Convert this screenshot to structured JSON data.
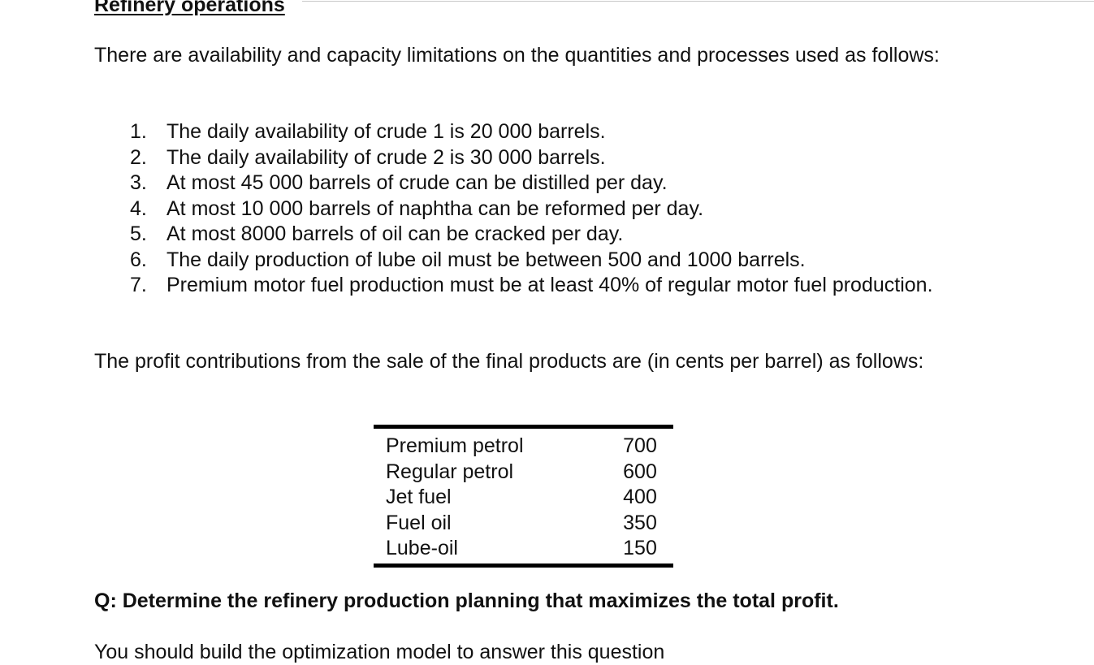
{
  "document": {
    "heading": "Refinery operations",
    "intro": "There are availability and capacity limitations on the quantities and processes used as follows:",
    "limitations": [
      {
        "number": "1.",
        "text": "The daily availability of crude 1 is 20 000 barrels."
      },
      {
        "number": "2.",
        "text": "The daily availability of crude 2 is 30 000 barrels."
      },
      {
        "number": "3.",
        "text": "At most 45 000 barrels of crude can be distilled per day."
      },
      {
        "number": "4.",
        "text": "At most 10 000 barrels of naphtha can be reformed per day."
      },
      {
        "number": "5.",
        "text": "At most 8000 barrels of oil can be cracked per day."
      },
      {
        "number": "6.",
        "text": "The daily production of lube oil must be between 500 and 1000 barrels."
      },
      {
        "number": "7.",
        "text": "Premium motor fuel production must be at least 40% of regular motor fuel production."
      }
    ],
    "profit_intro": "The profit contributions from the sale of the final products are (in cents per barrel) as follows:",
    "profit_table": [
      {
        "product": "Premium petrol",
        "value": "700"
      },
      {
        "product": "Regular petrol",
        "value": "600"
      },
      {
        "product": "Jet fuel",
        "value": "400"
      },
      {
        "product": "Fuel oil",
        "value": "350"
      },
      {
        "product": "Lube-oil",
        "value": "150"
      }
    ],
    "question": "Q: Determine the refinery production planning that maximizes the total profit.",
    "instruction": "You should build the optimization model to answer this question"
  }
}
